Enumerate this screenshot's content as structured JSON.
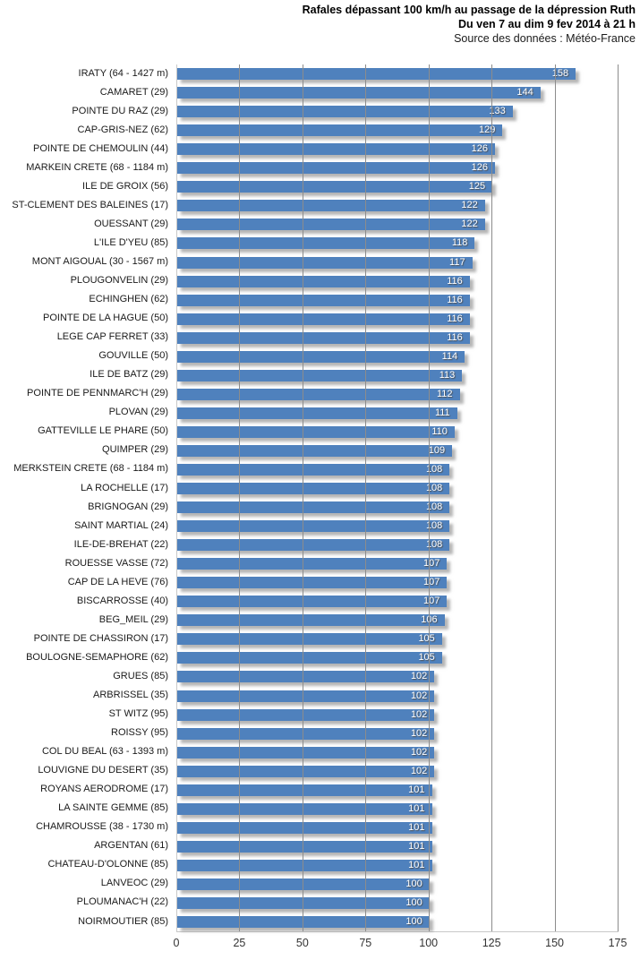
{
  "header": {
    "title_line1": "Rafales dépassant 100 km/h au passage de la dépression Ruth",
    "title_line2": "Du ven 7 au dim 9 fev 2014 à 21 h",
    "source": "Source des données : Météo-France"
  },
  "chart_data": {
    "type": "bar",
    "orientation": "horizontal",
    "unit": "km/h",
    "title": "Rafales dépassant 100 km/h au passage de la dépression Ruth",
    "subtitle": "Du ven 7 au dim 9 fev 2014 à 21 h",
    "source": "Source des données : Météo-France",
    "xlabel": "",
    "ylabel": "",
    "xlim": [
      0,
      175
    ],
    "xticks": [
      0,
      25,
      50,
      75,
      100,
      125,
      150,
      175
    ],
    "grid": true,
    "gridlines_in_front": true,
    "bar_color": "#4f81bd",
    "gridline_color": "#8c8c8c",
    "value_label_style": "white-inside-end",
    "categories": [
      "IRATY (64 - 1427 m)",
      "CAMARET (29)",
      "POINTE DU RAZ (29)",
      "CAP-GRIS-NEZ (62)",
      "POINTE DE CHEMOULIN (44)",
      "MARKEIN CRETE (68 - 1184 m)",
      "ILE DE GROIX (56)",
      "ST-CLEMENT DES BALEINES (17)",
      "OUESSANT (29)",
      "L'ILE D'YEU (85)",
      "MONT AIGOUAL (30 - 1567 m)",
      "PLOUGONVELIN (29)",
      "ECHINGHEN (62)",
      "POINTE DE LA HAGUE (50)",
      "LEGE CAP FERRET (33)",
      "GOUVILLE (50)",
      "ILE DE BATZ (29)",
      "POINTE DE PENNMARC'H (29)",
      "PLOVAN (29)",
      "GATTEVILLE LE PHARE (50)",
      "QUIMPER (29)",
      "MERKSTEIN CRETE (68 - 1184 m)",
      "LA ROCHELLE (17)",
      "BRIGNOGAN (29)",
      "SAINT MARTIAL (24)",
      "ILE-DE-BREHAT (22)",
      "ROUESSE VASSE (72)",
      "CAP DE LA HEVE (76)",
      "BISCARROSSE (40)",
      "BEG_MEIL (29)",
      "POINTE DE CHASSIRON (17)",
      "BOULOGNE-SEMAPHORE (62)",
      "GRUES (85)",
      "ARBRISSEL (35)",
      "ST WITZ (95)",
      "ROISSY (95)",
      "COL DU BEAL (63 - 1393 m)",
      "LOUVIGNE DU DESERT (35)",
      "ROYANS AERODROME (17)",
      "LA SAINTE GEMME (85)",
      "CHAMROUSSE (38 - 1730 m)",
      "ARGENTAN (61)",
      "CHATEAU-D'OLONNE (85)",
      "LANVEOC (29)",
      "PLOUMANAC'H (22)",
      "NOIRMOUTIER (85)"
    ],
    "values": [
      158,
      144,
      133,
      129,
      126,
      126,
      125,
      122,
      122,
      118,
      117,
      116,
      116,
      116,
      116,
      114,
      113,
      112,
      111,
      110,
      109,
      108,
      108,
      108,
      108,
      108,
      107,
      107,
      107,
      106,
      105,
      105,
      102,
      102,
      102,
      102,
      102,
      102,
      101,
      101,
      101,
      101,
      101,
      100,
      100,
      100
    ]
  }
}
